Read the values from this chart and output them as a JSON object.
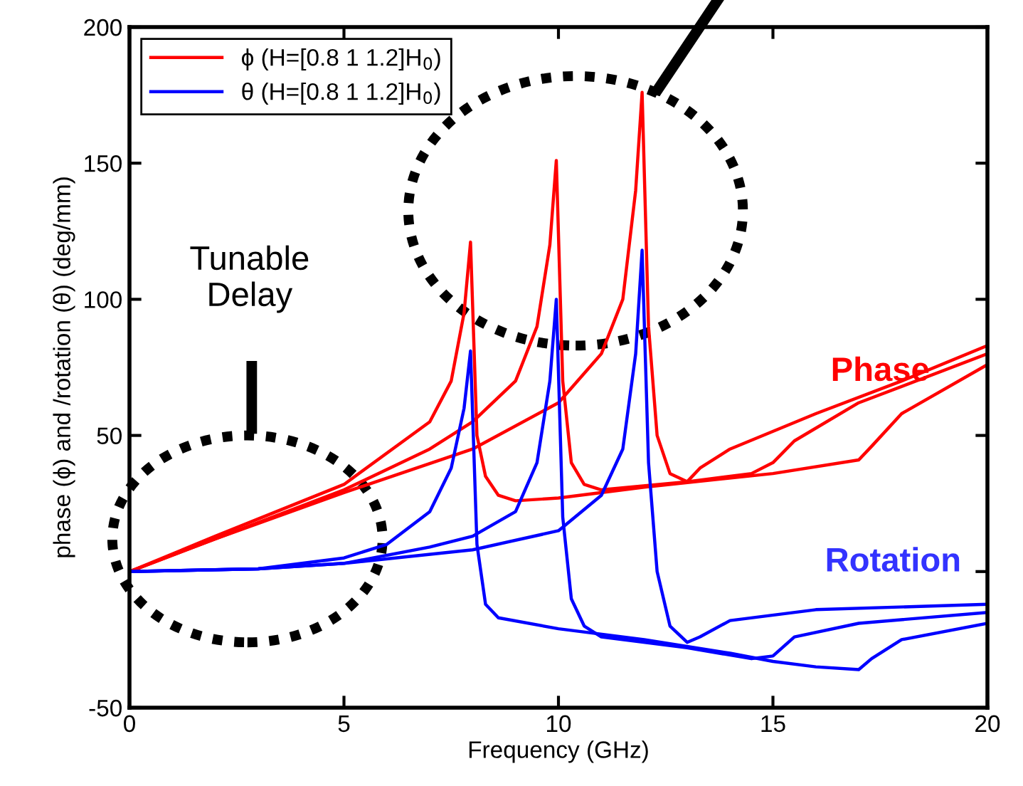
{
  "chart_data": {
    "type": "line",
    "xlabel": "Frequency (GHz)",
    "ylabel": "phase (ϕ) and /rotation (θ) (deg/mm)",
    "xlim": [
      0,
      20
    ],
    "ylim": [
      -50,
      200
    ],
    "xticks": [
      0,
      5,
      10,
      15,
      20
    ],
    "yticks": [
      -50,
      {
        "value": 0,
        "label": null
      },
      50,
      100,
      150,
      200
    ],
    "grid": false,
    "legend": "top left",
    "line_style": "solid",
    "marker": "none",
    "series": [
      {
        "name": "ϕ (H=[0.8 1 1.2]H$_{0}$)",
        "color": "#ff0000",
        "x": [
          0,
          2,
          5,
          7,
          7.5,
          7.8,
          7.95,
          8.1,
          8.3,
          8.6,
          9,
          10,
          12,
          15,
          17,
          17.3,
          18,
          20
        ],
        "values": [
          0,
          13,
          32,
          55,
          70,
          95,
          121,
          50,
          35,
          28,
          26,
          27,
          31,
          36,
          41,
          46,
          58,
          76
        ]
      },
      {
        "color": "#ff0000",
        "x": [
          0,
          2,
          5,
          7,
          8,
          9,
          9.5,
          9.8,
          9.95,
          10.1,
          10.3,
          10.6,
          11,
          13,
          14.5,
          15,
          15.5,
          17,
          20
        ],
        "values": [
          0,
          12,
          30,
          45,
          55,
          70,
          90,
          120,
          151,
          70,
          40,
          32,
          30,
          33,
          36,
          40,
          48,
          62,
          80
        ]
      },
      {
        "color": "#ff0000",
        "x": [
          0,
          2,
          5,
          8,
          10,
          11,
          11.5,
          11.8,
          11.95,
          12.1,
          12.3,
          12.6,
          13,
          13.3,
          14,
          16,
          18,
          20
        ],
        "values": [
          0,
          12,
          29,
          45,
          62,
          80,
          100,
          140,
          176,
          90,
          50,
          36,
          33,
          38,
          45,
          58,
          70,
          83
        ]
      },
      {
        "name": "θ (H=[0.8 1 1.2]H$_{0}$)",
        "color": "#0000ff",
        "x": [
          0,
          3,
          5,
          6,
          7,
          7.5,
          7.8,
          7.95,
          8.1,
          8.3,
          8.6,
          10,
          12,
          14,
          15,
          16,
          17,
          17.3,
          18,
          20
        ],
        "values": [
          0,
          1,
          5,
          10,
          22,
          38,
          60,
          81,
          10,
          -12,
          -17,
          -21,
          -25,
          -30,
          -33,
          -35,
          -36,
          -32,
          -25,
          -19
        ]
      },
      {
        "color": "#0000ff",
        "x": [
          0,
          3,
          5,
          7,
          8,
          9,
          9.5,
          9.8,
          9.95,
          10.1,
          10.3,
          10.6,
          11,
          13,
          14.5,
          15,
          15.5,
          17,
          20
        ],
        "values": [
          0,
          1,
          3,
          9,
          13,
          22,
          40,
          70,
          100,
          20,
          -10,
          -20,
          -24,
          -28,
          -32,
          -31,
          -24,
          -19,
          -15
        ]
      },
      {
        "color": "#0000ff",
        "x": [
          0,
          3,
          5,
          8,
          10,
          11,
          11.5,
          11.8,
          11.95,
          12.1,
          12.3,
          12.6,
          13,
          13.3,
          14,
          16,
          20
        ],
        "values": [
          0,
          1,
          3,
          8,
          15,
          28,
          45,
          80,
          118,
          40,
          0,
          -20,
          -26,
          -24,
          -18,
          -14,
          -12
        ]
      }
    ],
    "annotations": [
      "Tunable\nDelay",
      "Phase",
      "Rotation"
    ]
  }
}
